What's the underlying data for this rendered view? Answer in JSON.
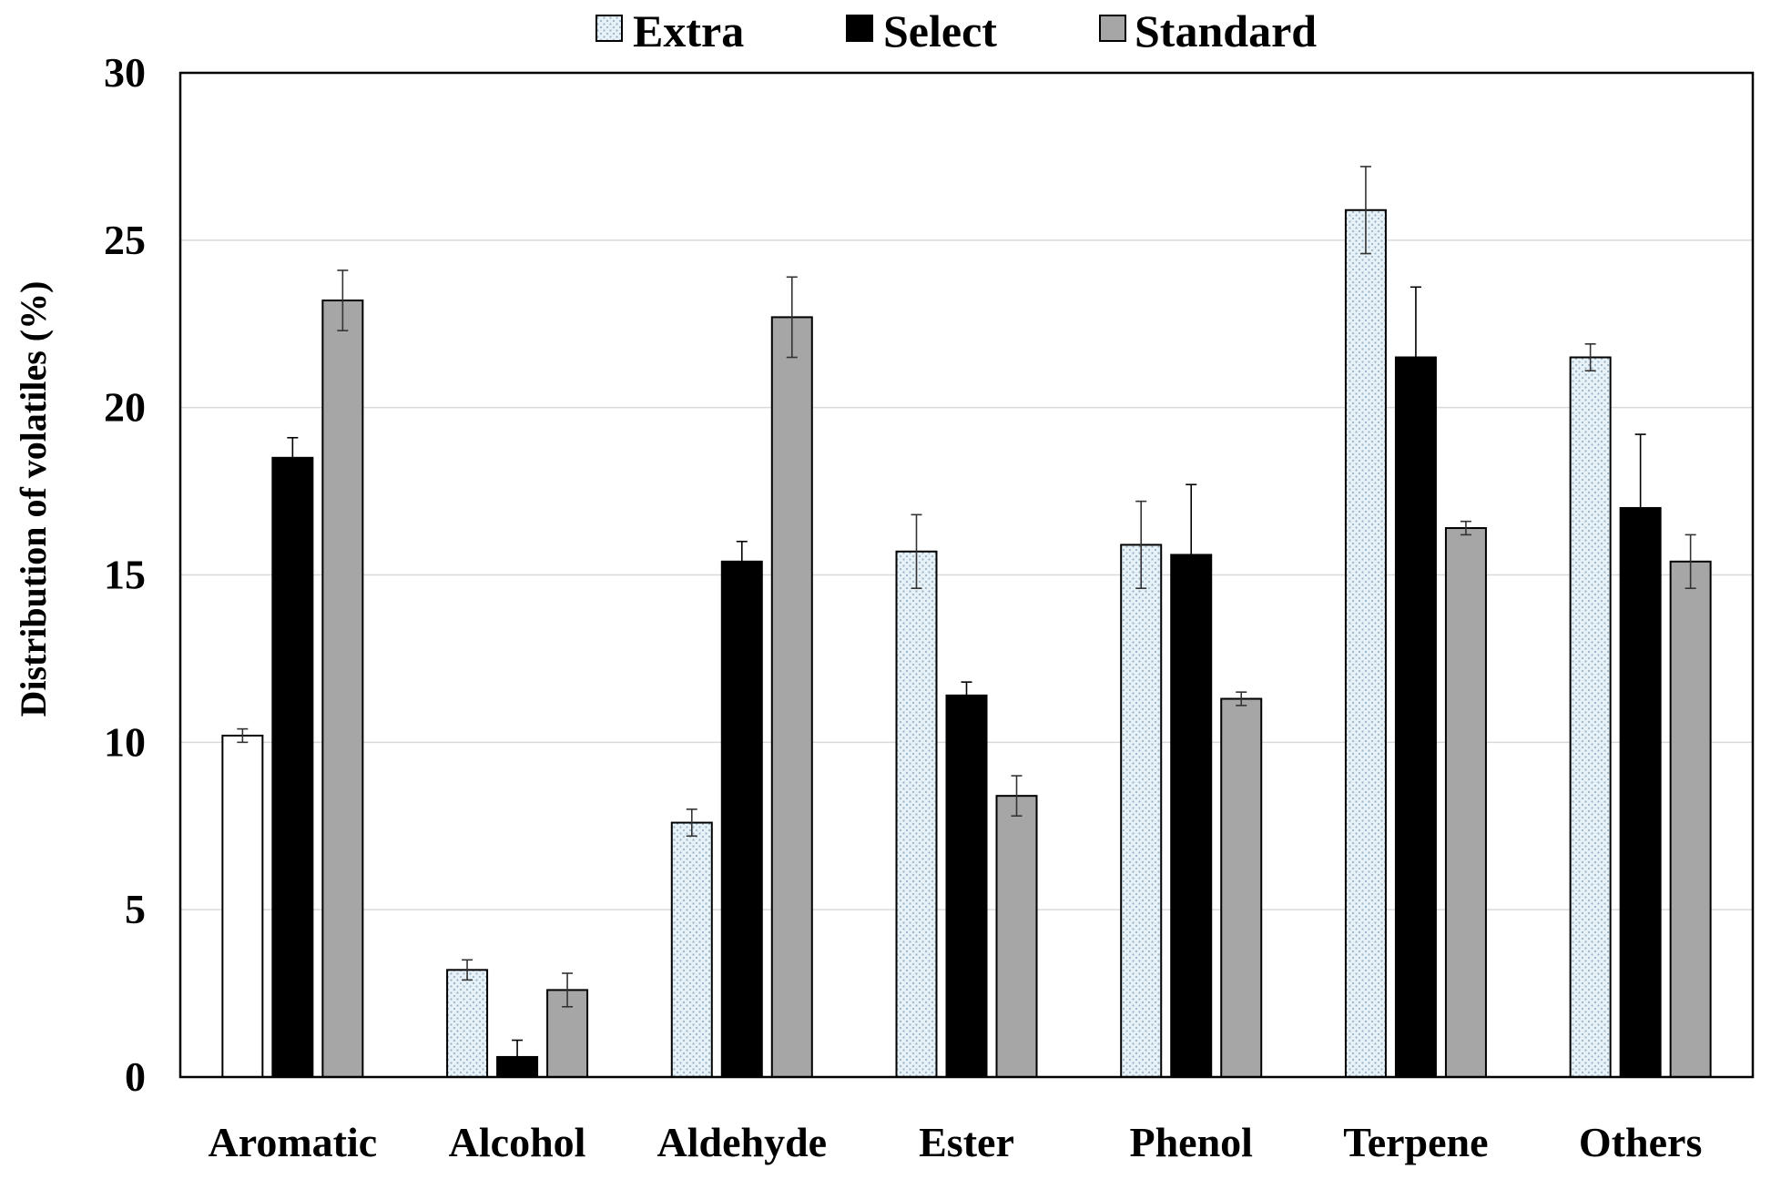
{
  "chart_data": {
    "type": "bar",
    "title": "",
    "xlabel": "",
    "ylabel": "Distribution of volatiles (%)",
    "ylim": [
      0,
      30
    ],
    "yticks": [
      0,
      5,
      10,
      15,
      20,
      25,
      30
    ],
    "grid": true,
    "legend_position": "top-center",
    "categories": [
      "Aromatic",
      "Alcohol",
      "Aldehyde",
      "Ester",
      "Phenol",
      "Terpene",
      "Others"
    ],
    "series": [
      {
        "name": "Extra",
        "color": "#dbe9f3",
        "pattern": "dotted",
        "values": [
          10.2,
          3.2,
          7.6,
          15.7,
          15.9,
          25.9,
          21.5
        ],
        "errors": [
          0.2,
          0.3,
          0.4,
          1.1,
          1.3,
          1.3,
          0.4
        ]
      },
      {
        "name": "Select",
        "color": "#000000",
        "pattern": "solid",
        "values": [
          18.5,
          0.6,
          15.4,
          11.4,
          15.6,
          21.5,
          17.0
        ],
        "errors": [
          0.6,
          0.5,
          0.6,
          0.4,
          2.1,
          2.1,
          2.2
        ]
      },
      {
        "name": "Standard",
        "color": "#a6a6a6",
        "pattern": "solid",
        "values": [
          23.2,
          2.6,
          22.7,
          8.4,
          11.3,
          16.4,
          15.4
        ],
        "errors": [
          0.9,
          0.5,
          1.2,
          0.6,
          0.2,
          0.2,
          0.8
        ]
      }
    ]
  }
}
